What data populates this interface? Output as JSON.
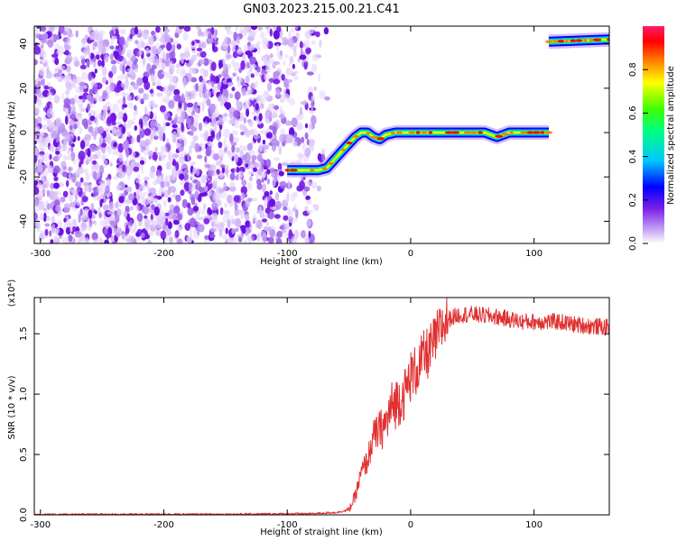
{
  "title": "GN03.2023.215.00.21.C41",
  "chart_data": [
    {
      "type": "heatmap",
      "xlabel": "Height of straight line (km)",
      "ylabel": "Frequency (Hz)",
      "xlim": [
        -305,
        161
      ],
      "ylim": [
        -50,
        48
      ],
      "xticks": [
        -300,
        -200,
        -100,
        0,
        100
      ],
      "yticks": [
        -40,
        -20,
        0,
        20,
        40
      ],
      "grid": false,
      "colorbar": {
        "label": "Normalized spectral amplitude",
        "range": [
          0,
          1
        ],
        "ticks": [
          0.0,
          0.2,
          0.4,
          0.6,
          0.8
        ],
        "colormap": [
          "#ffffff",
          "#c9a9f5",
          "#7b1fe6",
          "#0000ff",
          "#00c8ff",
          "#00ff80",
          "#40ff00",
          "#ffff00",
          "#ff8000",
          "#ff0000",
          "#ff1a6e"
        ]
      },
      "noise_region": {
        "x_range": [
          -305,
          -75
        ],
        "freq_range": [
          -50,
          48
        ],
        "amplitude": "low (~0.05-0.15)"
      },
      "signal_track": {
        "x": [
          -100,
          -75,
          -68,
          -55,
          -45,
          -40,
          -35,
          -30,
          -25,
          -20,
          -12,
          0,
          20,
          40,
          60,
          70,
          80,
          100,
          112
        ],
        "frequency": [
          -17,
          -17,
          -16,
          -8,
          -2,
          0,
          0,
          -2,
          -3,
          -1,
          0,
          0,
          0,
          0,
          0,
          -2,
          0,
          0,
          0
        ],
        "amplitude": "high (~0.8-1.0)"
      },
      "upper_track": {
        "x": [
          112,
          161
        ],
        "frequency": [
          41,
          42
        ],
        "amplitude": "high (~0.9-1.0)"
      }
    },
    {
      "type": "line",
      "xlabel": "Height of straight line (km)",
      "ylabel": "SNR (10 * v/v)",
      "y_multiplier": "(x10⁴)",
      "xlim": [
        -305,
        161
      ],
      "ylim": [
        0,
        1.8
      ],
      "xticks": [
        -300,
        -200,
        -100,
        0,
        100
      ],
      "yticks": [
        "0.0",
        "0.5",
        "1.0",
        "1.5"
      ],
      "line_color": "#e03030",
      "series": [
        {
          "x": [
            -305,
            -150,
            -80,
            -60,
            -50,
            -45,
            -40,
            -35,
            -30,
            -25,
            -20,
            -15,
            -10,
            -5,
            0,
            5,
            10,
            15,
            20,
            25,
            30,
            40,
            50,
            60,
            70,
            80,
            90,
            100,
            110,
            120,
            130,
            140,
            150,
            161
          ],
          "y": [
            0.003,
            0.005,
            0.01,
            0.02,
            0.04,
            0.15,
            0.35,
            0.45,
            0.65,
            0.7,
            0.75,
            0.9,
            0.95,
            1.0,
            1.15,
            1.2,
            1.3,
            1.35,
            1.45,
            1.55,
            1.62,
            1.66,
            1.66,
            1.65,
            1.64,
            1.62,
            1.6,
            1.6,
            1.6,
            1.6,
            1.58,
            1.57,
            1.56,
            1.55
          ]
        }
      ]
    }
  ]
}
